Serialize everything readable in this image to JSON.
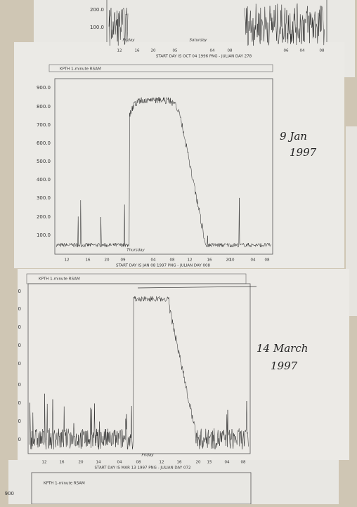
{
  "sheets": [
    {
      "yticks": [
        "200.0",
        "100.0"
      ],
      "xlabels": [
        "12",
        "16",
        "20",
        "05",
        "04",
        "08",
        "06",
        "04",
        "08"
      ],
      "annotations": [
        "Friday",
        "Saturday"
      ],
      "footer": "START DAY IS OCT 04 1996 PNG  - JULIAN DAY 278"
    },
    {
      "title": "KPTH 1-minute RSAM",
      "yticks": [
        "900.0",
        "800.0",
        "700.0",
        "600.0",
        "500.0",
        "400.0",
        "300.0",
        "200.0",
        "100.0"
      ],
      "xlabels": [
        "12",
        "16",
        "20",
        "09",
        "04",
        "08",
        "12",
        "16",
        "20",
        "10",
        "04",
        "08"
      ],
      "annotations": [
        "Thursday"
      ],
      "footer": "START DAY IS JAN 08 1997 PNG  - JULIAN DAY 008",
      "note": [
        "9 Jan",
        "1997"
      ]
    },
    {
      "title": "KPTH 1-minute RSAM",
      "yticks": [
        "0",
        "0",
        "0",
        "0",
        "0",
        "0",
        "0",
        "0",
        "0"
      ],
      "xlabels": [
        "12",
        "16",
        "20",
        "14",
        "04",
        "08",
        "12",
        "16",
        "20",
        "15",
        "04",
        "08"
      ],
      "annotations": [
        "Friday"
      ],
      "footer": "START DAY IS MAR 13 1997 PNG  - JULIAN DAY 072",
      "note": [
        "14 March",
        "1997"
      ]
    },
    {
      "title": "KPTH 1-minute RSAM",
      "yticks": [
        "900"
      ]
    }
  ]
}
